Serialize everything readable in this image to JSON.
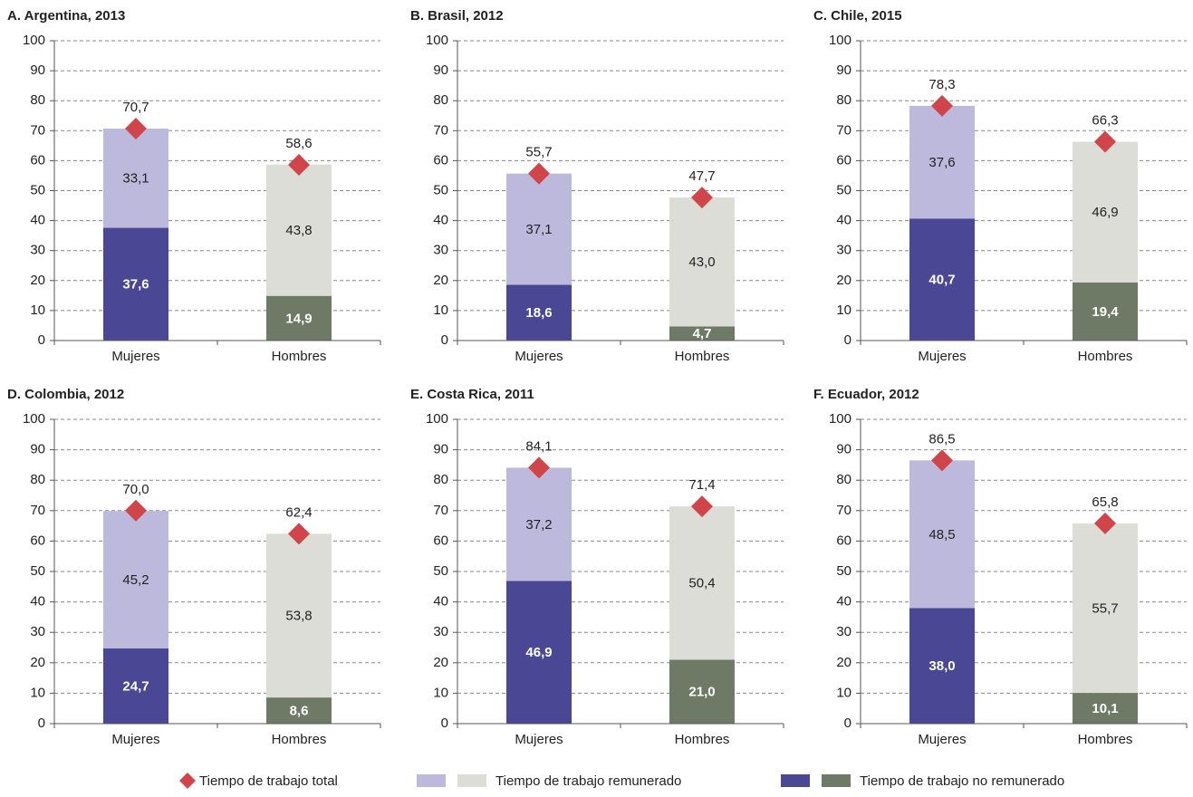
{
  "chart_data": [
    {
      "type": "bar",
      "title": "A. Argentina, 2013",
      "categories": [
        "Mujeres",
        "Hombres"
      ],
      "series": [
        {
          "colors": [
            "#4a4795",
            "#6e7a66"
          ],
          "values": [
            37.6,
            14.9
          ],
          "value_labels": [
            "37,6",
            "14,9"
          ]
        },
        {
          "colors": [
            "#bdb9dc",
            "#dcddd6"
          ],
          "values": [
            33.1,
            43.8
          ],
          "value_labels": [
            "33,1",
            "43,8"
          ]
        }
      ],
      "totals": {
        "color": "#d0454a",
        "values": [
          70.7,
          58.6
        ],
        "value_labels": [
          "70,7",
          "58,6"
        ]
      },
      "ylim": [
        0,
        100
      ],
      "yticks": [
        0,
        10,
        20,
        30,
        40,
        50,
        60,
        70,
        80,
        90,
        100
      ],
      "grid": true
    },
    {
      "type": "bar",
      "title": "B. Brasil, 2012",
      "categories": [
        "Mujeres",
        "Hombres"
      ],
      "series": [
        {
          "colors": [
            "#4a4795",
            "#6e7a66"
          ],
          "values": [
            18.6,
            4.7
          ],
          "value_labels": [
            "18,6",
            "4,7"
          ]
        },
        {
          "colors": [
            "#bdb9dc",
            "#dcddd6"
          ],
          "values": [
            37.1,
            43.0
          ],
          "value_labels": [
            "37,1",
            "43,0"
          ]
        }
      ],
      "totals": {
        "color": "#d0454a",
        "values": [
          55.7,
          47.7
        ],
        "value_labels": [
          "55,7",
          "47,7"
        ]
      },
      "ylim": [
        0,
        100
      ],
      "yticks": [
        0,
        10,
        20,
        30,
        40,
        50,
        60,
        70,
        80,
        90,
        100
      ],
      "grid": true
    },
    {
      "type": "bar",
      "title": "C. Chile, 2015",
      "categories": [
        "Mujeres",
        "Hombres"
      ],
      "series": [
        {
          "colors": [
            "#4a4795",
            "#6e7a66"
          ],
          "values": [
            40.7,
            19.4
          ],
          "value_labels": [
            "40,7",
            "19,4"
          ]
        },
        {
          "colors": [
            "#bdb9dc",
            "#dcddd6"
          ],
          "values": [
            37.6,
            46.9
          ],
          "value_labels": [
            "37,6",
            "46,9"
          ]
        }
      ],
      "totals": {
        "color": "#d0454a",
        "values": [
          78.3,
          66.3
        ],
        "value_labels": [
          "78,3",
          "66,3"
        ]
      },
      "ylim": [
        0,
        100
      ],
      "yticks": [
        0,
        10,
        20,
        30,
        40,
        50,
        60,
        70,
        80,
        90,
        100
      ],
      "grid": true
    },
    {
      "type": "bar",
      "title": "D. Colombia, 2012",
      "categories": [
        "Mujeres",
        "Hombres"
      ],
      "series": [
        {
          "colors": [
            "#4a4795",
            "#6e7a66"
          ],
          "values": [
            24.7,
            8.6
          ],
          "value_labels": [
            "24,7",
            "8,6"
          ]
        },
        {
          "colors": [
            "#bdb9dc",
            "#dcddd6"
          ],
          "values": [
            45.2,
            53.8
          ],
          "value_labels": [
            "45,2",
            "53,8"
          ]
        }
      ],
      "totals": {
        "color": "#d0454a",
        "values": [
          70.0,
          62.4
        ],
        "value_labels": [
          "70,0",
          "62,4"
        ]
      },
      "ylim": [
        0,
        100
      ],
      "yticks": [
        0,
        10,
        20,
        30,
        40,
        50,
        60,
        70,
        80,
        90,
        100
      ],
      "grid": true
    },
    {
      "type": "bar",
      "title": "E. Costa Rica, 2011",
      "categories": [
        "Mujeres",
        "Hombres"
      ],
      "series": [
        {
          "colors": [
            "#4a4795",
            "#6e7a66"
          ],
          "values": [
            46.9,
            21.0
          ],
          "value_labels": [
            "46,9",
            "21,0"
          ]
        },
        {
          "colors": [
            "#bdb9dc",
            "#dcddd6"
          ],
          "values": [
            37.2,
            50.4
          ],
          "value_labels": [
            "37,2",
            "50,4"
          ]
        }
      ],
      "totals": {
        "color": "#d0454a",
        "values": [
          84.1,
          71.4
        ],
        "value_labels": [
          "84,1",
          "71,4"
        ]
      },
      "ylim": [
        0,
        100
      ],
      "yticks": [
        0,
        10,
        20,
        30,
        40,
        50,
        60,
        70,
        80,
        90,
        100
      ],
      "grid": true
    },
    {
      "type": "bar",
      "title": "F. Ecuador, 2012",
      "categories": [
        "Mujeres",
        "Hombres"
      ],
      "series": [
        {
          "colors": [
            "#4a4795",
            "#6e7a66"
          ],
          "values": [
            38.0,
            10.1
          ],
          "value_labels": [
            "38,0",
            "10,1"
          ]
        },
        {
          "colors": [
            "#bdb9dc",
            "#dcddd6"
          ],
          "values": [
            48.5,
            55.7
          ],
          "value_labels": [
            "48,5",
            "55,7"
          ]
        }
      ],
      "totals": {
        "color": "#d0454a",
        "values": [
          86.5,
          65.8
        ],
        "value_labels": [
          "86,5",
          "65,8"
        ]
      },
      "ylim": [
        0,
        100
      ],
      "yticks": [
        0,
        10,
        20,
        30,
        40,
        50,
        60,
        70,
        80,
        90,
        100
      ],
      "grid": true
    }
  ],
  "legend": [
    {
      "name": "Tiempo de trabajo total",
      "colors": [
        "#d0454a"
      ]
    },
    {
      "name": "Tiempo de trabajo remunerado",
      "colors": [
        "#bdb9dc",
        "#dcddd6"
      ]
    },
    {
      "name": "Tiempo de trabajo no remunerado",
      "colors": [
        "#4a4795",
        "#6e7a66"
      ]
    }
  ]
}
